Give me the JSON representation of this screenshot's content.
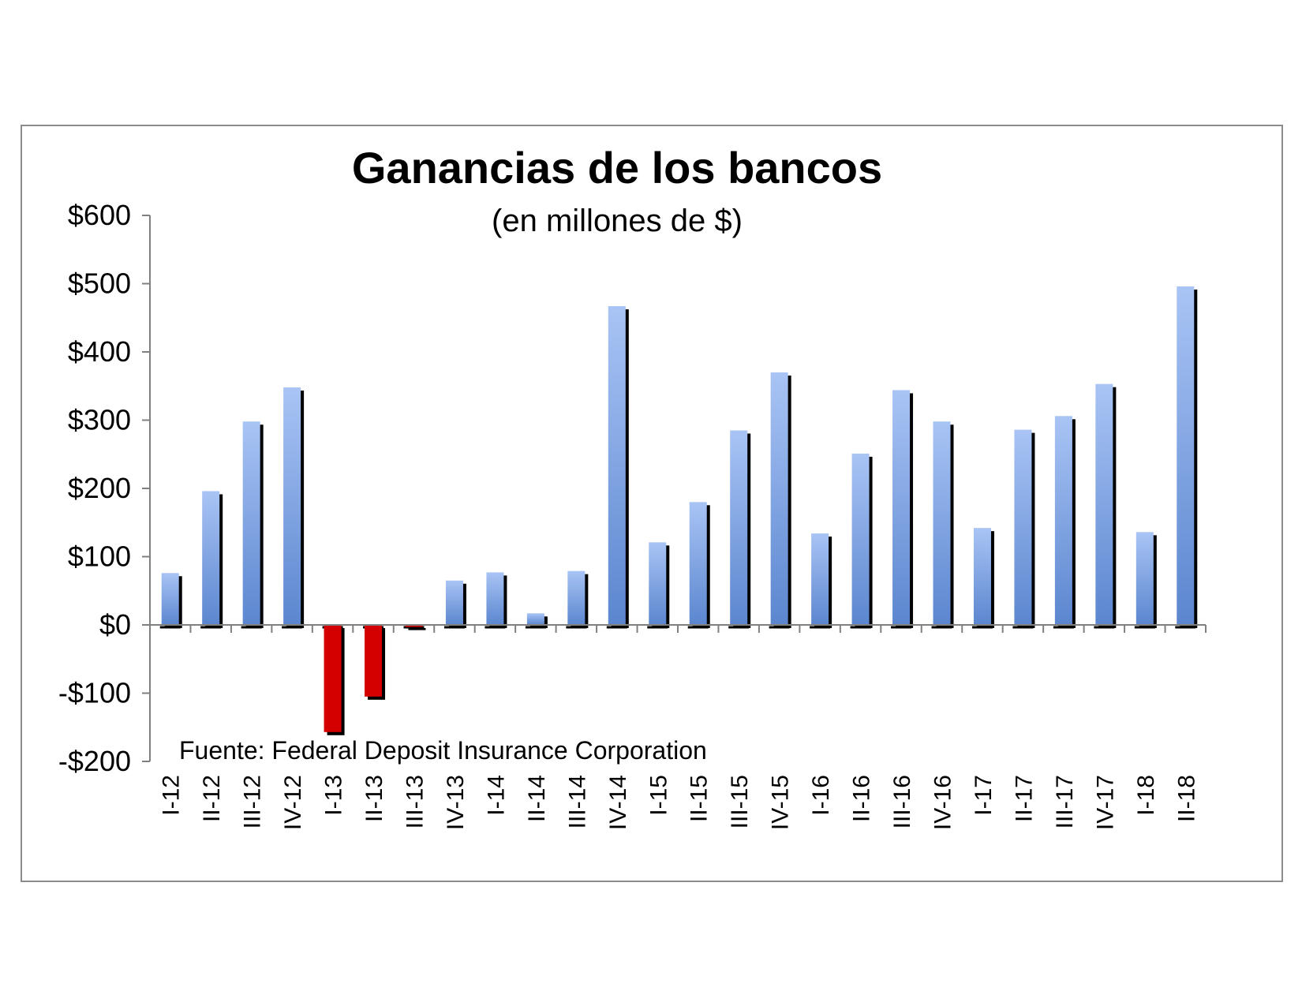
{
  "chart_data": {
    "type": "bar",
    "title": "Ganancias de los bancos",
    "subtitle": "(en millones de $)",
    "source": "Fuente:  Federal Deposit Insurance Corporation",
    "categories": [
      "I-12",
      "II-12",
      "III-12",
      "IV-12",
      "I-13",
      "II-13",
      "III-13",
      "IV-13",
      "I-14",
      "II-14",
      "III-14",
      "IV-14",
      "I-15",
      "II-15",
      "III-15",
      "IV-15",
      "I-16",
      "II-16",
      "III-16",
      "IV-16",
      "I-17",
      "II-17",
      "III-17",
      "IV-17",
      "I-18",
      "II-18"
    ],
    "values": [
      76,
      196,
      298,
      348,
      -157,
      -105,
      -3,
      65,
      77,
      17,
      79,
      467,
      121,
      180,
      285,
      370,
      134,
      251,
      344,
      298,
      142,
      286,
      306,
      353,
      136,
      496
    ],
    "ylim": [
      -200,
      600
    ],
    "yticks": [
      600,
      500,
      400,
      300,
      200,
      100,
      0,
      -100,
      -200
    ],
    "ytick_labels": [
      "$600",
      "$500",
      "$400",
      "$300",
      "$200",
      "$100",
      "$0",
      "-$100",
      "-$200"
    ],
    "xlabel": "",
    "ylabel": "",
    "grid": false,
    "colors": {
      "positive_top": "#a9c4f5",
      "positive_bottom": "#5b86cf",
      "negative": "#d40000",
      "shadow": "#000000",
      "axis": "#808080"
    }
  }
}
